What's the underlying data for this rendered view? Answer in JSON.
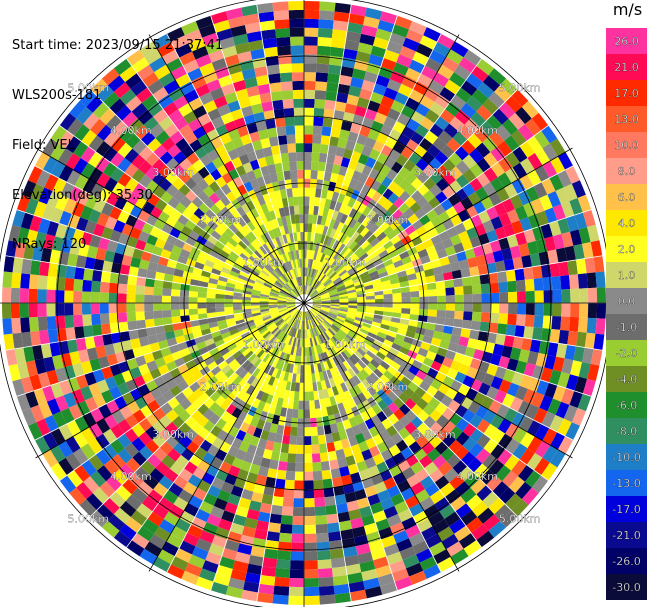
{
  "header": {
    "start_time": "Start time: 2023/09/15 21:37:41",
    "instrument": "WLS200s-181",
    "field": "Field: VEL",
    "elevation": "Elevation(deg): 35.30",
    "nrays": "NRays: 120"
  },
  "colorbar": {
    "unit": "m/s",
    "ticks": [
      "26.0",
      "21.0",
      "17.0",
      "13.0",
      "10.0",
      "8.0",
      "6.0",
      "4.0",
      "2.0",
      "1.0",
      "0.0",
      "-1.0",
      "-2.0",
      "-4.0",
      "-6.0",
      "-8.0",
      "-10.0",
      "-13.0",
      "-17.0",
      "-21.0",
      "-26.0",
      "-30.0"
    ],
    "colors": [
      "#ff33a0",
      "#ff0a55",
      "#ff2a00",
      "#ff5a2a",
      "#ff7860",
      "#ff9c8a",
      "#ffc14a",
      "#ffe800",
      "#ffff20",
      "#cfd66a",
      "#8a8a8a",
      "#6d6d6d",
      "#9acd32",
      "#6f8e23",
      "#1f8f2d",
      "#2f8f60",
      "#1e7ec8",
      "#1466ee",
      "#0000dd",
      "#0a0a90",
      "#000066",
      "#0b0b3a"
    ]
  },
  "chart_data": {
    "type": "heatmap",
    "subtype": "radar-ppi",
    "field": "VEL",
    "units": "m/s",
    "n_rays": 120,
    "value_range": [
      -30,
      26
    ],
    "range_ring_labels": [
      "1.00km",
      "2.00km",
      "3.00km",
      "4.00km",
      "5.00km"
    ],
    "range_rings_km": [
      1,
      2,
      3,
      4,
      5
    ],
    "inner_pattern": "mostly low velocities (-2 to 2 m/s) within 2 km",
    "outer_pattern": "noisy multi-color returns beyond 3 km"
  }
}
